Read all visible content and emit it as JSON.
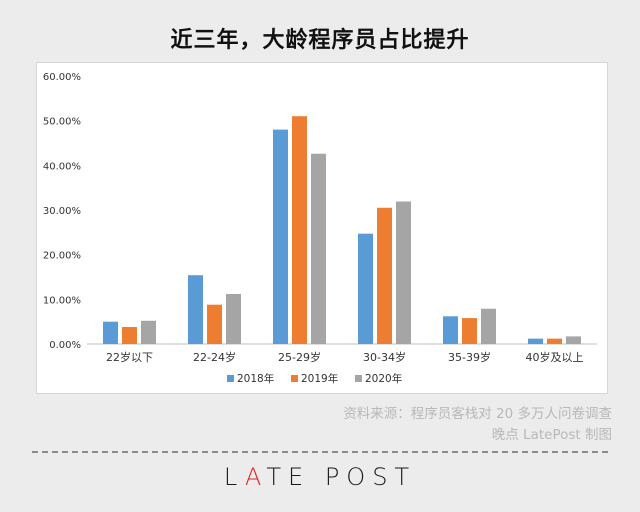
{
  "title": "近三年，大龄程序员占比提升",
  "source": {
    "line1": "资料来源：程序员客栈对 20 多万人问卷调查",
    "line2": "晚点 LatePost 制图"
  },
  "logo_text": "LATE POST",
  "colors": {
    "s2018": "#5b9bd5",
    "s2019": "#ed7d31",
    "s2020": "#a5a5a5",
    "logo_accent": "#d8262b"
  },
  "chart_data": {
    "type": "bar",
    "categories": [
      "22岁以下",
      "22-24岁",
      "25-29岁",
      "30-34岁",
      "35-39岁",
      "40岁及以上"
    ],
    "series": [
      {
        "name": "2018年",
        "values": [
          5.0,
          15.4,
          48.0,
          24.7,
          6.2,
          1.2
        ]
      },
      {
        "name": "2019年",
        "values": [
          3.8,
          8.8,
          51.0,
          30.5,
          5.8,
          1.2
        ]
      },
      {
        "name": "2020年",
        "values": [
          5.2,
          11.2,
          42.6,
          31.9,
          7.9,
          1.7
        ]
      }
    ],
    "y_ticks": [
      "0.00%",
      "10.00%",
      "20.00%",
      "30.00%",
      "40.00%",
      "50.00%",
      "60.00%"
    ],
    "ylim": [
      0,
      60
    ],
    "legend_position": "bottom",
    "grid": false
  }
}
